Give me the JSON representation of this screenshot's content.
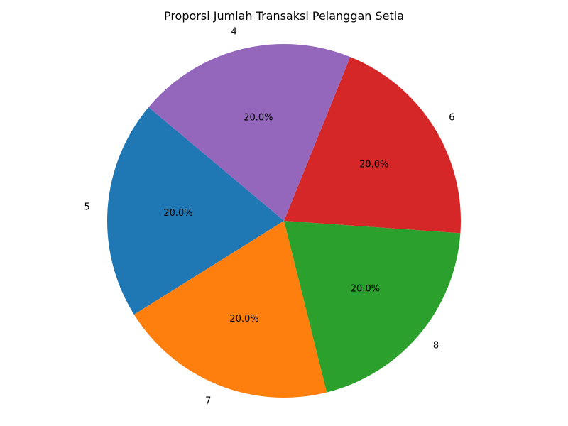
{
  "chart_data": {
    "type": "pie",
    "title": "Proporsi Jumlah Transaksi Pelanggan Setia",
    "start_angle_deg": 140,
    "direction": "counterclockwise",
    "slices": [
      {
        "label": "5",
        "value": 20.0,
        "pct_label": "20.0%",
        "color": "#1f77b4"
      },
      {
        "label": "7",
        "value": 20.0,
        "pct_label": "20.0%",
        "color": "#ff7f0e"
      },
      {
        "label": "8",
        "value": 20.0,
        "pct_label": "20.0%",
        "color": "#2ca02c"
      },
      {
        "label": "6",
        "value": 20.0,
        "pct_label": "20.0%",
        "color": "#d62728"
      },
      {
        "label": "4",
        "value": 20.0,
        "pct_label": "20.0%",
        "color": "#9467bd"
      }
    ]
  }
}
